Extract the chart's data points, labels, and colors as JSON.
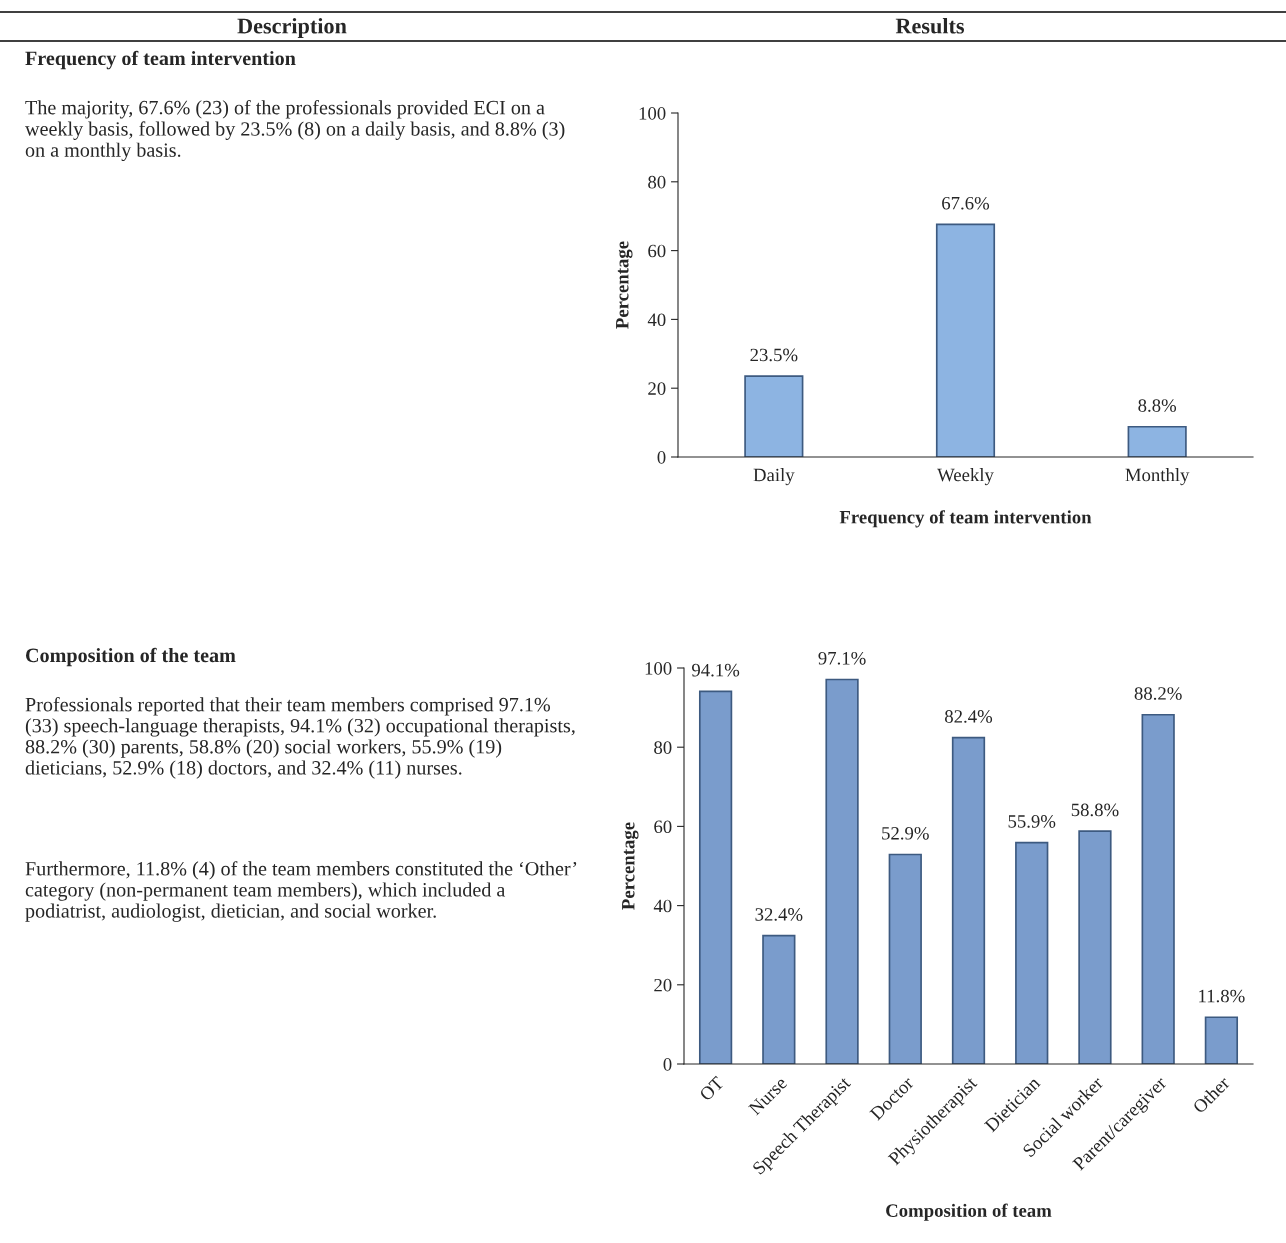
{
  "chart_data": [
    {
      "type": "other",
      "annotations": [
        "Description",
        "Results"
      ]
    },
    {
      "type": "other",
      "title": "Frequency of team intervention",
      "annotations": [
        "The majority, 67.6% (23) of the professionals provided ECI on a weekly basis, followed by 23.5% (8) on a daily basis, and 8.8% (3) on a monthly basis."
      ]
    },
    {
      "type": "bar",
      "categories": [
        "Daily",
        "Weekly",
        "Monthly"
      ],
      "values": [
        23.5,
        67.6,
        8.8
      ],
      "value_labels": [
        "23.5%",
        "67.6%",
        "8.8%"
      ],
      "color": "#8db4e2",
      "xlabel": "Frequency of team intervention",
      "ylabel": "Percentage",
      "ylim": [
        0,
        100
      ],
      "yticks": [
        0,
        20,
        40,
        60,
        80,
        100
      ],
      "grid": false,
      "legend": false
    },
    {
      "type": "other",
      "title": "Composition of the team",
      "annotations": [
        "Professionals reported that their team members comprised 97.1% (33) speech-language therapists, 94.1% (32) occupational therapists, 88.2% (30) parents, 58.8% (20) social workers, 55.9% (19) dieticians, 52.9% (18) doctors, and 32.4% (11) nurses.",
        "Furthermore, 11.8% (4) of the team members constituted the ‘Other’ category (non-permanent team members), which included a podiatrist, audiologist, dietician, and social worker."
      ]
    },
    {
      "type": "bar",
      "categories": [
        "OT",
        "Nurse",
        "Speech Therapist",
        "Doctor",
        "Physiotherapist",
        "Dietician",
        "Social worker",
        "Parent/caregiver",
        "Other"
      ],
      "values": [
        94.1,
        32.4,
        97.1,
        52.9,
        82.4,
        55.9,
        58.8,
        88.2,
        11.8
      ],
      "value_labels": [
        "94.1%",
        "32.4%",
        "97.1%",
        "52.9%",
        "82.4%",
        "55.9%",
        "58.8%",
        "88.2%",
        "11.8%"
      ],
      "color": "#7a9ccc",
      "xlabel": "Composition of team",
      "ylabel": "Percentage",
      "ylim": [
        0,
        100
      ],
      "yticks": [
        0,
        20,
        40,
        60,
        80,
        100
      ],
      "grid": false,
      "legend": false
    }
  ]
}
